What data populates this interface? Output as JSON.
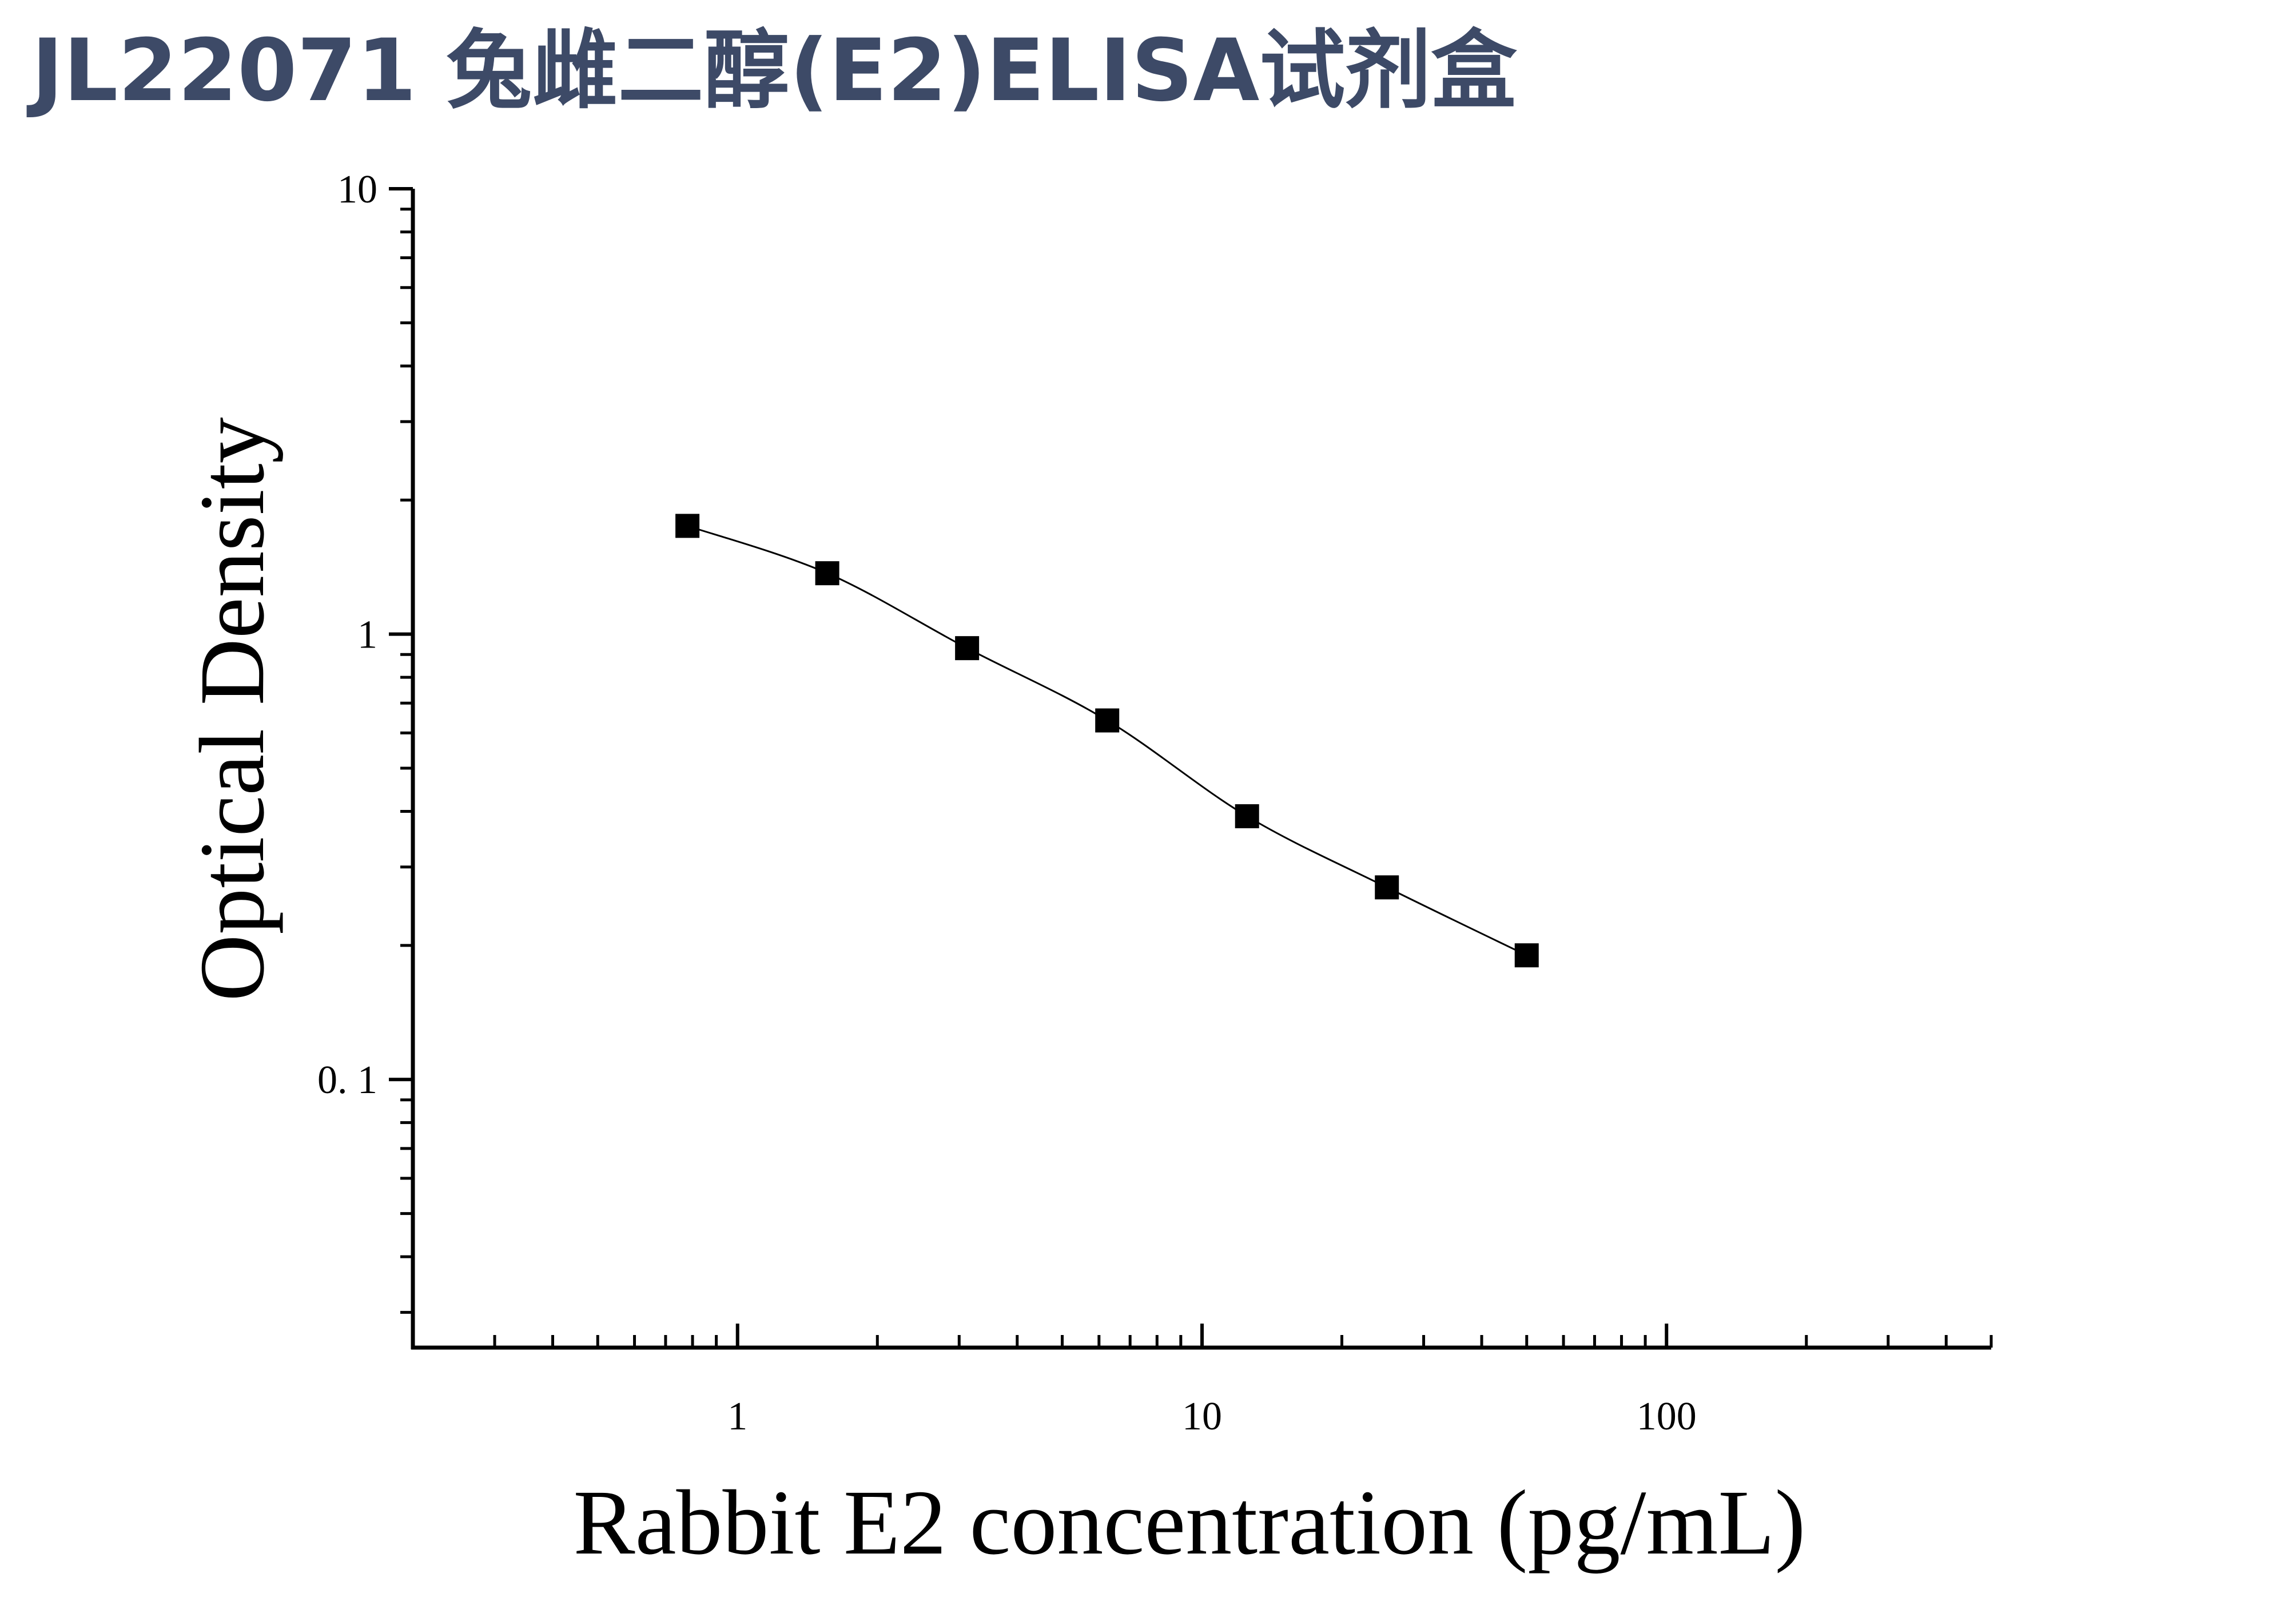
{
  "title": "JL22071 兔雌二醇(E2)ELISA试剂盒",
  "chart_data": {
    "type": "scatter",
    "title": "JL22071 兔雌二醇(E2)ELISA试剂盒",
    "xlabel": "Rabbit E2 concentration (pg/mL)",
    "ylabel": "Optical Density",
    "x_scale": "log",
    "y_scale": "log",
    "xlim": [
      0.2,
      500
    ],
    "ylim": [
      0.025,
      10
    ],
    "x_ticks": [
      1,
      10,
      100
    ],
    "x_tick_labels": [
      "1",
      "10",
      "100"
    ],
    "y_ticks": [
      10,
      1,
      0.1
    ],
    "y_tick_labels": [
      "10",
      "1",
      "0. 1"
    ],
    "grid": false,
    "legend": false,
    "marker": "square",
    "series": [
      {
        "x": [
          0.78,
          1.56,
          3.12,
          6.25,
          12.5,
          25,
          50
        ],
        "y": [
          1.75,
          1.37,
          0.93,
          0.64,
          0.39,
          0.27,
          0.19
        ]
      }
    ],
    "fit_curve": true,
    "colors": {
      "title": "#3d4a67",
      "axis": "#000000",
      "marker": "#000000",
      "curve": "#000000"
    }
  }
}
